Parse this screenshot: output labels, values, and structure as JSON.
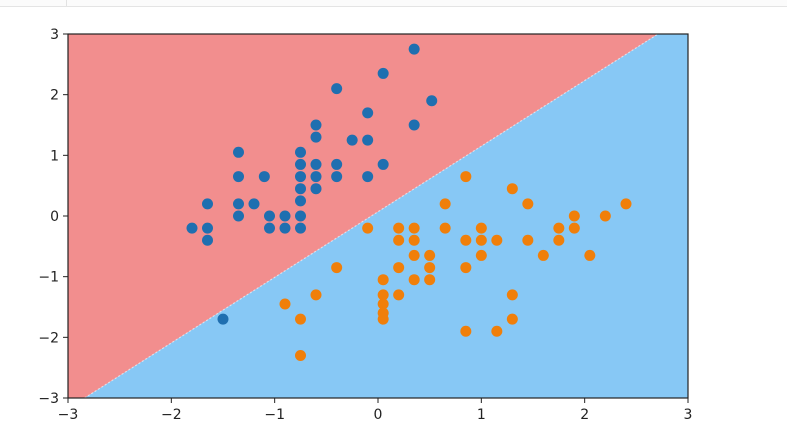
{
  "chart_data": {
    "type": "scatter",
    "title": "",
    "xlabel": "",
    "ylabel": "",
    "xlim": [
      -3,
      3
    ],
    "ylim": [
      -3,
      3
    ],
    "x_ticks": [
      -3,
      -2,
      -1,
      0,
      1,
      2,
      3
    ],
    "y_ticks": [
      -3,
      -2,
      -1,
      0,
      1,
      2,
      3
    ],
    "x_tick_labels": [
      "−3",
      "−2",
      "−1",
      "0",
      "1",
      "2",
      "3"
    ],
    "y_tick_labels": [
      "−3",
      "−2",
      "−1",
      "0",
      "1",
      "2",
      "3"
    ],
    "grid": false,
    "legend": "none",
    "decision_boundary": {
      "from": [
        -2.84,
        -3
      ],
      "to": [
        2.71,
        3
      ],
      "region_above_color": "#f28e8e",
      "region_below_color": "#87c8f5"
    },
    "series": [
      {
        "color": "#1f6fb0",
        "points": [
          [
            0.35,
            2.75
          ],
          [
            0.05,
            2.35
          ],
          [
            -0.4,
            2.1
          ],
          [
            0.52,
            1.9
          ],
          [
            -0.1,
            1.7
          ],
          [
            -0.6,
            1.5
          ],
          [
            0.35,
            1.5
          ],
          [
            -0.6,
            1.3
          ],
          [
            -0.25,
            1.25
          ],
          [
            -0.1,
            1.25
          ],
          [
            -1.35,
            1.05
          ],
          [
            -0.75,
            1.05
          ],
          [
            -0.75,
            0.85
          ],
          [
            -0.6,
            0.85
          ],
          [
            -0.4,
            0.85
          ],
          [
            0.05,
            0.85
          ],
          [
            -1.35,
            0.65
          ],
          [
            -1.1,
            0.65
          ],
          [
            -0.75,
            0.65
          ],
          [
            -0.6,
            0.65
          ],
          [
            -0.4,
            0.65
          ],
          [
            -0.1,
            0.65
          ],
          [
            -0.75,
            0.45
          ],
          [
            -0.6,
            0.45
          ],
          [
            -1.65,
            0.2
          ],
          [
            -1.35,
            0.2
          ],
          [
            -1.2,
            0.2
          ],
          [
            -0.75,
            0.25
          ],
          [
            -1.35,
            0.0
          ],
          [
            -1.05,
            0.0
          ],
          [
            -0.9,
            0.0
          ],
          [
            -0.75,
            0.0
          ],
          [
            -1.8,
            -0.2
          ],
          [
            -1.65,
            -0.2
          ],
          [
            -1.05,
            -0.2
          ],
          [
            -0.9,
            -0.2
          ],
          [
            -0.75,
            -0.2
          ],
          [
            -1.65,
            -0.4
          ],
          [
            -1.5,
            -1.7
          ]
        ]
      },
      {
        "color": "#f07f0a",
        "points": [
          [
            0.85,
            0.65
          ],
          [
            1.3,
            0.45
          ],
          [
            1.45,
            0.2
          ],
          [
            2.4,
            0.2
          ],
          [
            0.65,
            0.2
          ],
          [
            1.9,
            0.0
          ],
          [
            2.2,
            0.0
          ],
          [
            -0.1,
            -0.2
          ],
          [
            0.2,
            -0.2
          ],
          [
            0.35,
            -0.2
          ],
          [
            0.65,
            -0.2
          ],
          [
            1.0,
            -0.2
          ],
          [
            1.75,
            -0.2
          ],
          [
            1.9,
            -0.2
          ],
          [
            0.2,
            -0.4
          ],
          [
            0.35,
            -0.4
          ],
          [
            0.85,
            -0.4
          ],
          [
            1.0,
            -0.4
          ],
          [
            1.15,
            -0.4
          ],
          [
            1.45,
            -0.4
          ],
          [
            1.75,
            -0.4
          ],
          [
            0.35,
            -0.65
          ],
          [
            0.5,
            -0.65
          ],
          [
            1.0,
            -0.65
          ],
          [
            1.6,
            -0.65
          ],
          [
            2.05,
            -0.65
          ],
          [
            -0.4,
            -0.85
          ],
          [
            0.2,
            -0.85
          ],
          [
            0.5,
            -0.85
          ],
          [
            0.85,
            -0.85
          ],
          [
            0.05,
            -1.05
          ],
          [
            0.35,
            -1.05
          ],
          [
            0.5,
            -1.05
          ],
          [
            0.2,
            -1.3
          ],
          [
            0.05,
            -1.3
          ],
          [
            -0.6,
            -1.3
          ],
          [
            1.3,
            -1.3
          ],
          [
            -0.9,
            -1.45
          ],
          [
            0.05,
            -1.45
          ],
          [
            0.05,
            -1.6
          ],
          [
            -0.75,
            -1.7
          ],
          [
            0.05,
            -1.7
          ],
          [
            1.3,
            -1.7
          ],
          [
            0.85,
            -1.9
          ],
          [
            1.15,
            -1.9
          ],
          [
            -0.75,
            -2.3
          ]
        ]
      }
    ]
  }
}
